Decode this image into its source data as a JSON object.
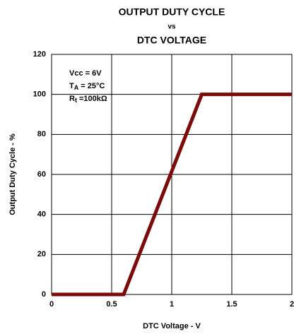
{
  "chart_data": {
    "type": "line",
    "title": [
      "OUTPUT DUTY CYCLE",
      "vs",
      "DTC VOLTAGE"
    ],
    "x_label": "DTC Voltage - V",
    "y_label": "Output Duty Cycle - %",
    "annotations": [
      {
        "text": "Vcc = 6V"
      },
      {
        "text": "T",
        "sub": "A",
        "rest": " = 25°C"
      },
      {
        "text": "R",
        "sub": "t",
        "rest": " =100kΩ"
      }
    ],
    "x": [
      0,
      0.6,
      1.25,
      2
    ],
    "series": [
      {
        "name": "Duty Cycle",
        "color": "#7b0a0a",
        "values": [
          0,
          0,
          100,
          100
        ]
      }
    ],
    "xlim": [
      0,
      2
    ],
    "xticks": [
      0,
      0.5,
      1,
      1.5,
      2
    ],
    "ylim": [
      0,
      120
    ],
    "yticks": [
      0,
      20,
      40,
      60,
      80,
      100,
      120
    ],
    "grid": true
  }
}
